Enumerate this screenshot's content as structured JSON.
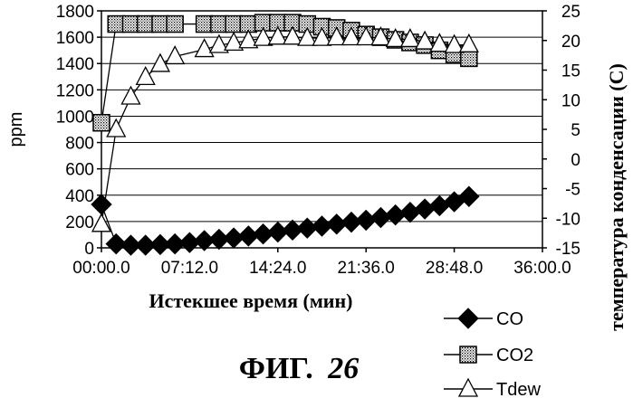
{
  "chart_data": {
    "type": "line",
    "title": "",
    "xlabel": "Истекшее время (мин)",
    "ylabel": "ppm",
    "y2label": "температура конденсации (C)",
    "xlim": [
      0,
      36
    ],
    "ylim": [
      0,
      1800
    ],
    "y2lim": [
      -15,
      25
    ],
    "x_tick_labels": [
      "00:00.0",
      "07:12.0",
      "14:24.0",
      "21:36.0",
      "28:48.0",
      "36:00.0"
    ],
    "x_tick_values": [
      0,
      7.2,
      14.4,
      21.6,
      28.8,
      36
    ],
    "y_tick_labels": [
      "0",
      "200",
      "400",
      "600",
      "800",
      "1000",
      "1200",
      "1400",
      "1600",
      "1800"
    ],
    "y_tick_values": [
      0,
      200,
      400,
      600,
      800,
      1000,
      1200,
      1400,
      1600,
      1800
    ],
    "y2_tick_labels": [
      "-15",
      "-10",
      "-5",
      "0",
      "5",
      "10",
      "15",
      "20",
      "25"
    ],
    "y2_tick_values": [
      -15,
      -10,
      -5,
      0,
      5,
      10,
      15,
      20,
      25
    ],
    "grid": "horizontal",
    "legend_position": "bottom-right",
    "series": [
      {
        "name": "CO",
        "axis": "left",
        "marker": "diamond-filled",
        "x": [
          0,
          1.2,
          2.4,
          3.6,
          4.8,
          6.0,
          7.2,
          8.4,
          9.6,
          10.8,
          12.0,
          13.2,
          14.4,
          15.6,
          16.8,
          18.0,
          19.2,
          20.4,
          21.6,
          22.8,
          24.0,
          25.2,
          26.4,
          27.6,
          28.8,
          30.0
        ],
        "values": [
          330,
          30,
          20,
          20,
          25,
          30,
          40,
          55,
          65,
          75,
          90,
          105,
          120,
          135,
          150,
          165,
          180,
          195,
          210,
          230,
          250,
          270,
          295,
          320,
          350,
          390
        ]
      },
      {
        "name": "CO2",
        "axis": "left",
        "marker": "square-dotted",
        "x": [
          0,
          1.2,
          2.4,
          3.6,
          4.8,
          6.0,
          8.4,
          9.6,
          10.8,
          12.0,
          13.2,
          14.4,
          15.6,
          16.8,
          18.0,
          19.2,
          20.4,
          21.6,
          22.8,
          24.0,
          25.2,
          26.4,
          27.6,
          28.8,
          30.0
        ],
        "values": [
          950,
          1700,
          1700,
          1700,
          1700,
          1700,
          1700,
          1700,
          1700,
          1700,
          1710,
          1710,
          1710,
          1700,
          1680,
          1670,
          1650,
          1620,
          1600,
          1580,
          1560,
          1540,
          1500,
          1470,
          1440
        ]
      },
      {
        "name": "Tdew",
        "axis": "right",
        "marker": "triangle-open",
        "x": [
          0,
          1.2,
          2.4,
          3.6,
          4.8,
          6.0,
          8.4,
          9.6,
          10.8,
          12.0,
          13.2,
          14.4,
          15.6,
          16.8,
          18.0,
          19.2,
          20.4,
          21.6,
          22.8,
          24.0,
          25.2,
          26.4,
          27.6,
          28.8,
          30.0
        ],
        "values": [
          -11,
          5,
          10.5,
          13.8,
          16,
          17.3,
          18.5,
          19.2,
          19.6,
          20,
          20.4,
          20.6,
          20.6,
          20.4,
          20.4,
          20.5,
          20.5,
          20.5,
          20.5,
          20.2,
          20.2,
          19.8,
          19.4,
          19.2,
          19.3
        ]
      }
    ],
    "caption": {
      "prefix": "ФИГ.",
      "number": "26"
    }
  }
}
